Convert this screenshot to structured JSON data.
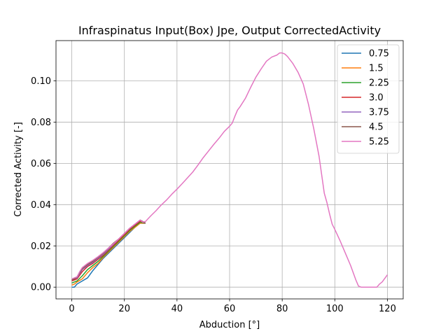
{
  "chart_data": {
    "type": "line",
    "title": "Infraspinatus Input(Box) Jpe, Output CorrectedActivity",
    "xlabel": "Abduction [°]",
    "ylabel": "Corrected Activity [-]",
    "xlim": [
      -6,
      126
    ],
    "ylim": [
      -0.0057,
      0.1195
    ],
    "xticks": [
      0,
      20,
      40,
      60,
      80,
      100,
      120
    ],
    "xtick_labels": [
      "0",
      "20",
      "40",
      "60",
      "80",
      "100",
      "120"
    ],
    "yticks": [
      0.0,
      0.02,
      0.04,
      0.06,
      0.08,
      0.1
    ],
    "ytick_labels": [
      "0.00",
      "0.02",
      "0.04",
      "0.06",
      "0.08",
      "0.10"
    ],
    "grid": true,
    "legend_position": "upper right",
    "series": [
      {
        "name": "0.75",
        "color": "#1f77b4",
        "x": [
          0,
          1,
          2,
          4,
          6,
          8,
          10,
          12,
          14,
          16,
          18,
          20,
          22,
          24,
          26,
          28
        ],
        "y": [
          0.0,
          0.0,
          0.0015,
          0.003,
          0.0045,
          0.008,
          0.011,
          0.014,
          0.0165,
          0.019,
          0.0215,
          0.024,
          0.0265,
          0.029,
          0.031,
          0.031
        ]
      },
      {
        "name": "1.5",
        "color": "#ff7f0e",
        "x": [
          0,
          1,
          2,
          4,
          6,
          8,
          10,
          12,
          14,
          16,
          18,
          20,
          22,
          24,
          26,
          28
        ],
        "y": [
          0.001,
          0.0015,
          0.0025,
          0.004,
          0.007,
          0.0095,
          0.0115,
          0.0145,
          0.017,
          0.0195,
          0.022,
          0.0245,
          0.027,
          0.029,
          0.031,
          0.031
        ]
      },
      {
        "name": "2.25",
        "color": "#2ca02c",
        "x": [
          0,
          1,
          2,
          4,
          6,
          8,
          10,
          12,
          14,
          16,
          18,
          20,
          22,
          24,
          26,
          28
        ],
        "y": [
          0.002,
          0.0025,
          0.003,
          0.0055,
          0.0085,
          0.0105,
          0.0125,
          0.015,
          0.0175,
          0.02,
          0.0225,
          0.025,
          0.0275,
          0.0295,
          0.0315,
          0.031
        ]
      },
      {
        "name": "3.0",
        "color": "#d62728",
        "x": [
          0,
          1,
          2,
          4,
          6,
          8,
          10,
          12,
          14,
          16,
          18,
          20,
          22,
          24,
          26,
          28
        ],
        "y": [
          0.003,
          0.0035,
          0.004,
          0.0075,
          0.01,
          0.0115,
          0.0135,
          0.0155,
          0.018,
          0.0205,
          0.023,
          0.0255,
          0.028,
          0.03,
          0.032,
          0.031
        ]
      },
      {
        "name": "3.75",
        "color": "#9467bd",
        "x": [
          0,
          1,
          2,
          4,
          6,
          8,
          10,
          12,
          14,
          16,
          18,
          20,
          22,
          24,
          26,
          28
        ],
        "y": [
          0.0035,
          0.004,
          0.0045,
          0.0085,
          0.0105,
          0.012,
          0.014,
          0.016,
          0.0185,
          0.021,
          0.0235,
          0.026,
          0.0285,
          0.0305,
          0.0325,
          0.031
        ]
      },
      {
        "name": "4.5",
        "color": "#8c564b",
        "x": [
          0,
          1,
          2,
          4,
          6,
          8,
          10,
          12,
          14,
          16,
          18,
          20,
          22,
          24,
          26,
          28
        ],
        "y": [
          0.0035,
          0.004,
          0.005,
          0.009,
          0.011,
          0.0125,
          0.0145,
          0.0165,
          0.019,
          0.0215,
          0.0235,
          0.026,
          0.0285,
          0.0305,
          0.0325,
          0.031
        ]
      },
      {
        "name": "5.25",
        "color": "#e377c2",
        "x": [
          0,
          1,
          2,
          3,
          4,
          5,
          6,
          8,
          10,
          12,
          14,
          16,
          18,
          20,
          22,
          24,
          26,
          27,
          28,
          30,
          32,
          34,
          36,
          38,
          40,
          42,
          44,
          46,
          48,
          50,
          52,
          54,
          56,
          58,
          60,
          61,
          62,
          63,
          64,
          66,
          68,
          70,
          72,
          74,
          76,
          78,
          79,
          80,
          81,
          82,
          84,
          86,
          88,
          90,
          92,
          94,
          95,
          96,
          97,
          98,
          99,
          100,
          102,
          104,
          106,
          108,
          109,
          110,
          112,
          114,
          116,
          117,
          118,
          120
        ],
        "y": [
          0.004,
          0.0045,
          0.005,
          0.0075,
          0.0095,
          0.0105,
          0.0115,
          0.013,
          0.0148,
          0.0168,
          0.019,
          0.0212,
          0.0235,
          0.026,
          0.0285,
          0.0305,
          0.0325,
          0.0315,
          0.0318,
          0.0345,
          0.037,
          0.0398,
          0.0422,
          0.045,
          0.0475,
          0.0502,
          0.053,
          0.0558,
          0.0592,
          0.0628,
          0.066,
          0.0692,
          0.0722,
          0.0755,
          0.078,
          0.0795,
          0.0828,
          0.0858,
          0.0875,
          0.0915,
          0.0968,
          0.1018,
          0.1058,
          0.1095,
          0.1115,
          0.1125,
          0.1135,
          0.1135,
          0.113,
          0.1118,
          0.1085,
          0.1042,
          0.0985,
          0.0885,
          0.0768,
          0.0635,
          0.0545,
          0.0455,
          0.041,
          0.0355,
          0.0305,
          0.028,
          0.0225,
          0.0165,
          0.0105,
          0.0035,
          0.0005,
          0.0,
          0.0,
          0.0,
          0.0,
          0.0015,
          0.0025,
          0.006
        ]
      }
    ]
  }
}
